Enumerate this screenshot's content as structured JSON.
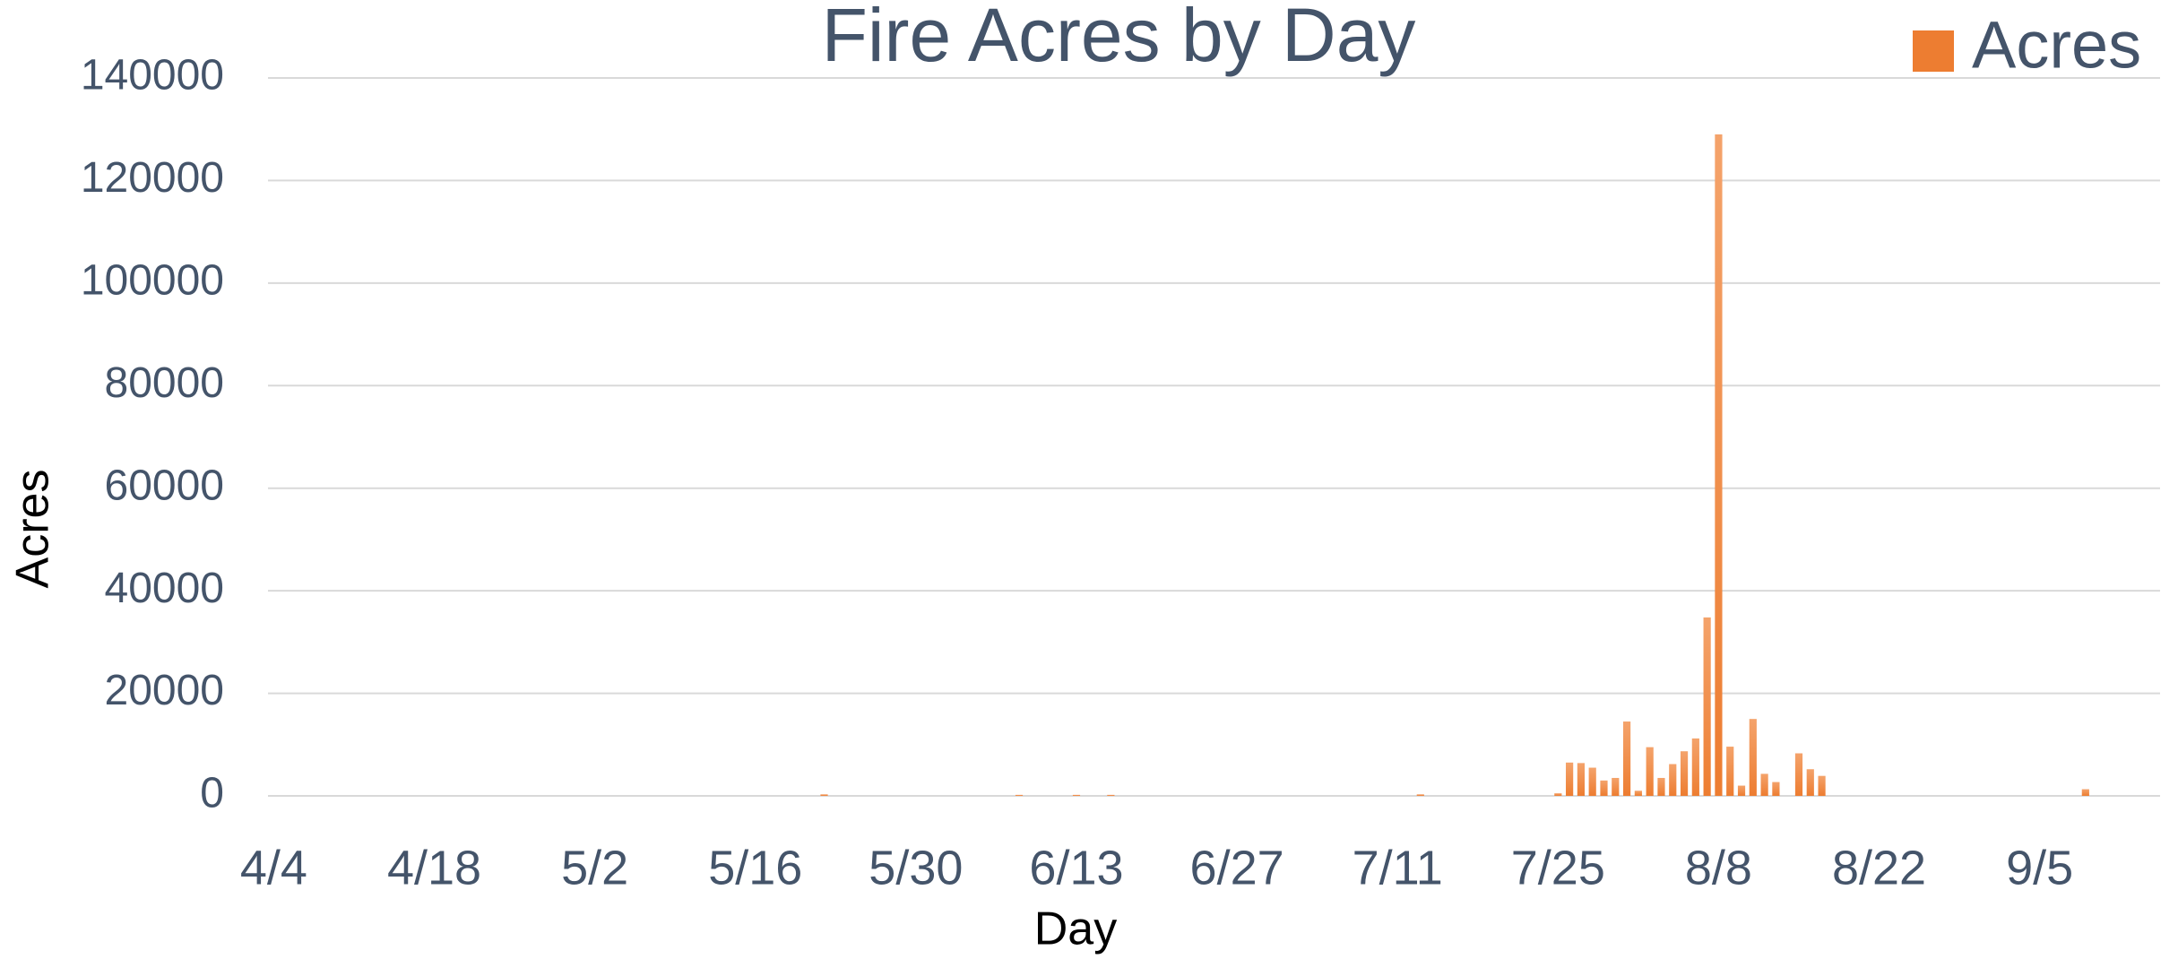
{
  "chart_data": {
    "type": "bar",
    "title": "Fire Acres by Day",
    "x_label": "Day",
    "y_label": "Acres",
    "categories": [
      "4/4",
      null,
      null,
      null,
      null,
      null,
      null,
      null,
      null,
      null,
      null,
      null,
      null,
      null,
      "4/18",
      null,
      null,
      null,
      null,
      null,
      null,
      null,
      null,
      null,
      null,
      null,
      null,
      null,
      "5/2",
      null,
      null,
      null,
      null,
      null,
      null,
      null,
      null,
      null,
      null,
      null,
      null,
      null,
      "5/16",
      null,
      null,
      null,
      null,
      null,
      null,
      null,
      null,
      null,
      null,
      null,
      null,
      null,
      "5/30",
      null,
      null,
      null,
      null,
      null,
      null,
      null,
      null,
      null,
      null,
      null,
      null,
      null,
      "6/13",
      null,
      null,
      null,
      null,
      null,
      null,
      null,
      null,
      null,
      null,
      null,
      null,
      null,
      "6/27",
      null,
      null,
      null,
      null,
      null,
      null,
      null,
      null,
      null,
      null,
      null,
      null,
      null,
      "7/11",
      null,
      null,
      null,
      null,
      null,
      null,
      null,
      null,
      null,
      null,
      null,
      null,
      null,
      "7/25",
      null,
      null,
      null,
      null,
      null,
      null,
      null,
      null,
      null,
      null,
      null,
      null,
      null,
      "8/8",
      null,
      null,
      null,
      null,
      null,
      null,
      null,
      null,
      null,
      null,
      null,
      null,
      null,
      "8/22",
      null,
      null,
      null,
      null,
      null,
      null,
      null,
      null,
      null,
      null,
      null,
      null,
      null,
      "9/5",
      null,
      null,
      null,
      null,
      null,
      null,
      null,
      null,
      null,
      null
    ],
    "series": [
      {
        "name": "Acres",
        "color": "#ed7d31",
        "values": [
          0,
          0,
          0,
          0,
          0,
          0,
          0,
          0,
          0,
          0,
          0,
          0,
          0,
          0,
          0,
          0,
          0,
          0,
          0,
          0,
          0,
          0,
          0,
          0,
          0,
          0,
          0,
          0,
          0,
          0,
          0,
          0,
          0,
          0,
          0,
          0,
          0,
          0,
          0,
          0,
          0,
          0,
          0,
          0,
          0,
          0,
          0,
          0,
          300,
          0,
          0,
          0,
          0,
          0,
          0,
          0,
          0,
          0,
          0,
          0,
          0,
          0,
          0,
          0,
          0,
          200,
          0,
          0,
          0,
          0,
          200,
          0,
          0,
          200,
          0,
          0,
          0,
          0,
          0,
          0,
          0,
          0,
          0,
          0,
          0,
          0,
          0,
          0,
          0,
          0,
          0,
          0,
          0,
          0,
          0,
          0,
          0,
          0,
          0,
          0,
          300,
          0,
          0,
          0,
          0,
          0,
          0,
          0,
          0,
          0,
          0,
          0,
          500,
          6500,
          6400,
          5500,
          3000,
          3500,
          14500,
          1000,
          9500,
          3500,
          6200,
          8700,
          11200,
          34800,
          129000,
          9600,
          2000,
          15000,
          4300,
          2700,
          0,
          8300,
          5200,
          3900,
          0,
          0,
          0,
          0,
          0,
          0,
          0,
          0,
          0,
          0,
          0,
          0,
          0,
          0,
          0,
          0,
          0,
          0,
          0,
          0,
          0,
          0,
          1300,
          0,
          0,
          0,
          0,
          0,
          0
        ]
      }
    ],
    "ylim": [
      0,
      140000
    ],
    "yticks": [
      0,
      20000,
      40000,
      60000,
      80000,
      100000,
      120000,
      140000
    ],
    "grid": true,
    "legend": "top-right"
  }
}
